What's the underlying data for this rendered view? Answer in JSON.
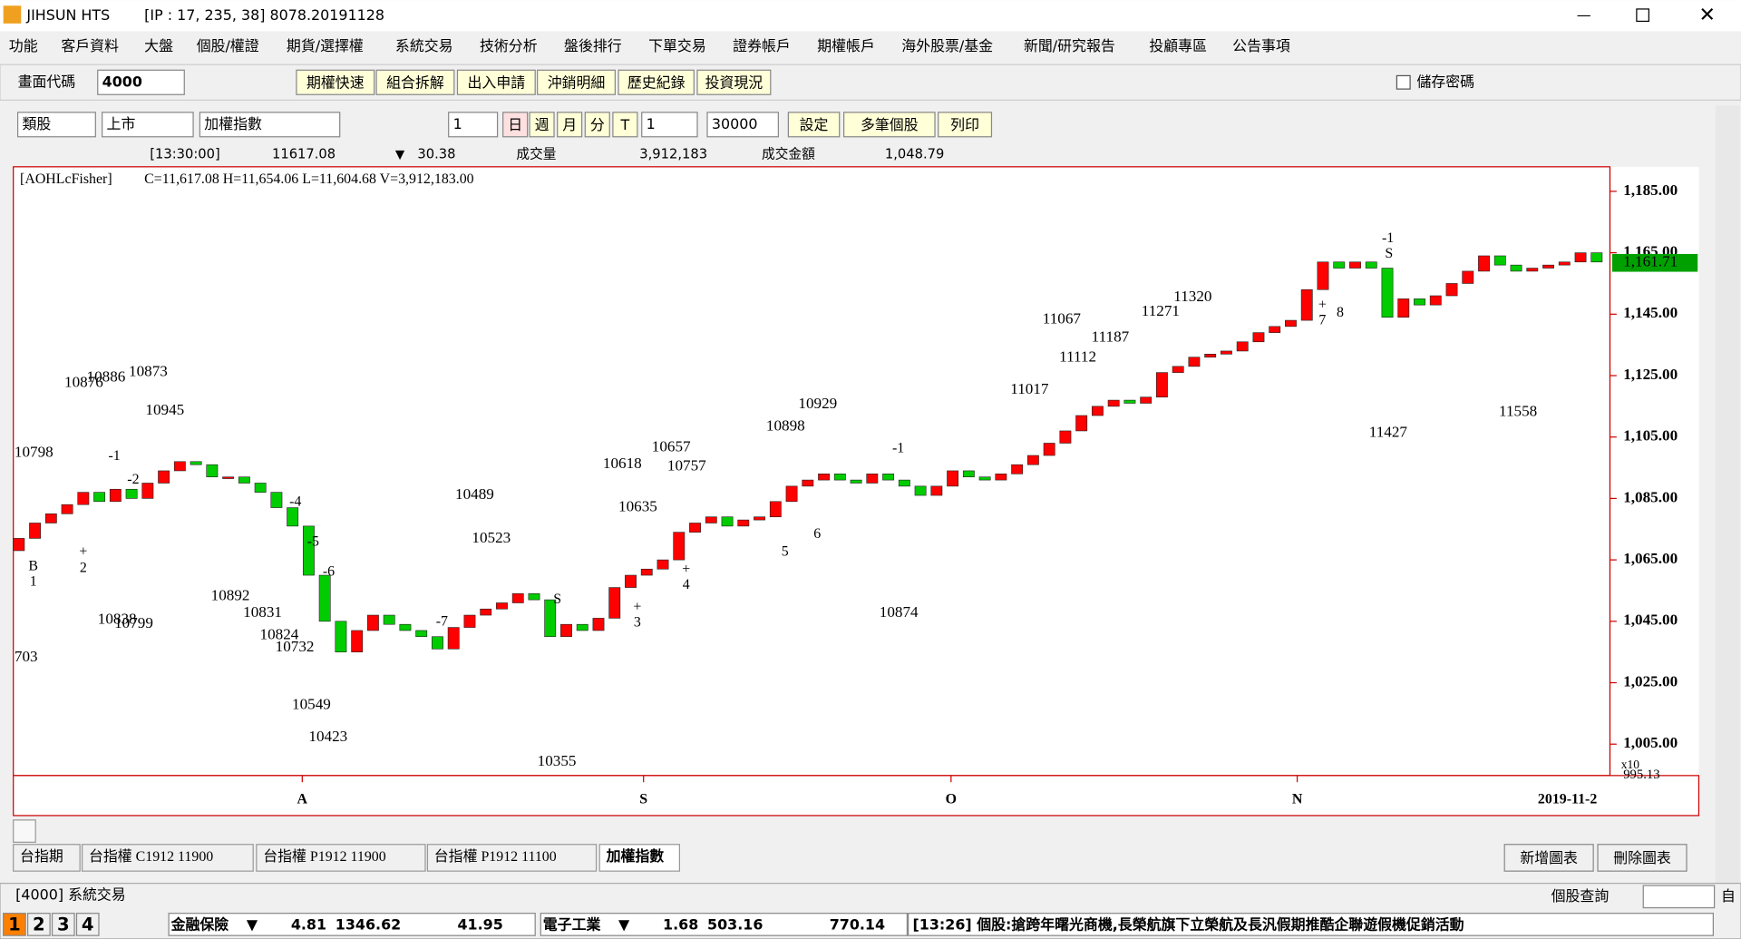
{
  "window": {
    "title": "JIHSUN HTS",
    "connection": "[IP : 17, 235, 38] 8078.20191128"
  },
  "menu": [
    "功能",
    "客戶資料",
    "大盤",
    "個股/權證",
    "期貨/選擇權",
    "系統交易",
    "技術分析",
    "盤後排行",
    "下單交易",
    "證券帳戶",
    "期權帳戶",
    "海外股票/基金",
    "新聞/研究報告",
    "投顧專區",
    "公告事項"
  ],
  "toolbar": {
    "code_label": "畫面代碼",
    "code": "4000",
    "buttons": [
      "期權快速",
      "組合拆解",
      "出入申請",
      "沖銷明細",
      "歷史紀錄",
      "投資現況"
    ],
    "save_password": "儲存密碼"
  },
  "chart_toolbar": {
    "selects": [
      "類股",
      "上市",
      "加權指數"
    ],
    "count": "1",
    "periods": [
      "日",
      "週",
      "月",
      "分",
      "T"
    ],
    "period_value": "1",
    "bars": "30000",
    "buttons": [
      "設定",
      "多筆個股",
      "列印"
    ]
  },
  "quote": {
    "time": "[13:30:00]",
    "price": "11617.08",
    "change": "30.38",
    "volume_label": "成交量",
    "volume": "3,912,183",
    "amount_label": "成交金額",
    "amount": "1,048.79"
  },
  "chart_data": {
    "type": "candlestick",
    "indicator": "[AOHLcFisher]",
    "legend": "C=11,617.08 H=11,654.06 L=11,604.68 V=3,912,183.00",
    "up_color": "#ff0000",
    "down_color": "#00cc00",
    "open": [
      1068,
      1072,
      1077,
      1080,
      1083,
      1087,
      1084,
      1088,
      1085,
      1090,
      1094,
      1097,
      1096,
      1092,
      1092,
      1090,
      1087,
      1082,
      1076,
      1060,
      1045,
      1035,
      1042,
      1047,
      1044,
      1042,
      1040,
      1036,
      1043,
      1047,
      1049,
      1051,
      1054,
      1052,
      1040,
      1044,
      1042,
      1046,
      1056,
      1060,
      1062,
      1065,
      1074,
      1077,
      1079,
      1076,
      1078,
      1079,
      1084,
      1089,
      1091,
      1093,
      1091,
      1090,
      1093,
      1091,
      1089,
      1086,
      1089,
      1094,
      1092,
      1091,
      1093,
      1096,
      1099,
      1103,
      1107,
      1112,
      1115,
      1117,
      1116,
      1118,
      1126,
      1128,
      1131,
      1132,
      1133,
      1136,
      1139,
      1141,
      1143,
      1153,
      1162,
      1160,
      1162,
      1160,
      1144,
      1150,
      1148,
      1151,
      1155,
      1159,
      1164,
      1161,
      1159,
      1160,
      1161,
      1162,
      1165
    ],
    "close": [
      1072,
      1077,
      1080,
      1083,
      1087,
      1084,
      1088,
      1085,
      1090,
      1094,
      1097,
      1096,
      1092,
      1092,
      1090,
      1087,
      1082,
      1076,
      1060,
      1045,
      1035,
      1042,
      1047,
      1044,
      1042,
      1040,
      1036,
      1043,
      1047,
      1049,
      1051,
      1054,
      1052,
      1040,
      1044,
      1042,
      1046,
      1056,
      1060,
      1062,
      1065,
      1074,
      1077,
      1079,
      1076,
      1078,
      1079,
      1084,
      1089,
      1091,
      1093,
      1091,
      1090,
      1093,
      1091,
      1089,
      1086,
      1089,
      1094,
      1092,
      1091,
      1093,
      1096,
      1099,
      1103,
      1107,
      1112,
      1115,
      1117,
      1116,
      1118,
      1126,
      1128,
      1131,
      1132,
      1133,
      1136,
      1139,
      1141,
      1143,
      1153,
      1162,
      1160,
      1162,
      1160,
      1144,
      1150,
      1148,
      1151,
      1155,
      1159,
      1164,
      1161,
      1159,
      1160,
      1161,
      1162,
      1165,
      1162
    ],
    "ylim": [
      995.13,
      1193
    ],
    "yticks": [
      {
        "value": 1185,
        "label": "1,185.00"
      },
      {
        "value": 1165,
        "label": "1,165.00"
      },
      {
        "value": 1145,
        "label": "1,145.00"
      },
      {
        "value": 1125,
        "label": "1,125.00"
      },
      {
        "value": 1105,
        "label": "1,105.00"
      },
      {
        "value": 1085,
        "label": "1,085.00"
      },
      {
        "value": 1065,
        "label": "1,065.00"
      },
      {
        "value": 1045,
        "label": "1,045.00"
      },
      {
        "value": 1025,
        "label": "1,025.00"
      },
      {
        "value": 1005,
        "label": "1,005.00"
      }
    ],
    "last_value": {
      "value": 1161.71,
      "label": "1,161.71"
    },
    "xticks": [
      {
        "value": 17.6,
        "label": "A"
      },
      {
        "value": 38.8,
        "label": "S"
      },
      {
        "value": 57.9,
        "label": "O"
      },
      {
        "value": 79.4,
        "label": "N"
      }
    ],
    "date_label": "2019-11-2",
    "bottom_label": "995.13",
    "scale_label": "x10",
    "annotations": [
      "10798",
      "10876",
      "10886",
      "10873",
      "10945",
      "10892",
      "10831",
      "10838",
      "10799",
      "10824",
      "10732",
      "703",
      "10549",
      "10423",
      "10489",
      "10523",
      "10355",
      "10618",
      "10657",
      "10757",
      "10635",
      "10898",
      "10929",
      "10874",
      "11017",
      "11067",
      "11112",
      "11187",
      "11271",
      "11320",
      "11427",
      "11558"
    ],
    "signals": [
      "B",
      "1",
      "+",
      "2",
      "-1",
      "-2",
      "-4",
      "-5",
      "-6",
      "-7",
      "S",
      "+",
      "3",
      "-1",
      "+",
      "4",
      "5",
      "6",
      "+",
      "7",
      "8",
      "-1",
      "S"
    ]
  },
  "tabs": [
    "台指期",
    "台指權 C1912 11900",
    "台指權 P1912 11900",
    "台指權 P1912 11100",
    "加權指數"
  ],
  "chart_buttons": [
    "新增圖表",
    "刪除圖表"
  ],
  "status": {
    "screen": "[4000] 系統交易",
    "query": "個股查詢",
    "auto": "自"
  },
  "ticker": {
    "levels": [
      "1",
      "2",
      "3",
      "4"
    ],
    "sectors": [
      {
        "name": "金融保險",
        "arrow": "▼",
        "change": "4.81",
        "index": "1346.62",
        "amount": "41.95"
      },
      {
        "name": "電子工業",
        "arrow": "▼",
        "change": "1.68",
        "index": "503.16",
        "amount": "770.14"
      }
    ],
    "news": "[13:26] 個股:搶跨年曙光商機,長榮航旗下立榮航及長汎假期推酷企聯遊假機促銷活動"
  }
}
